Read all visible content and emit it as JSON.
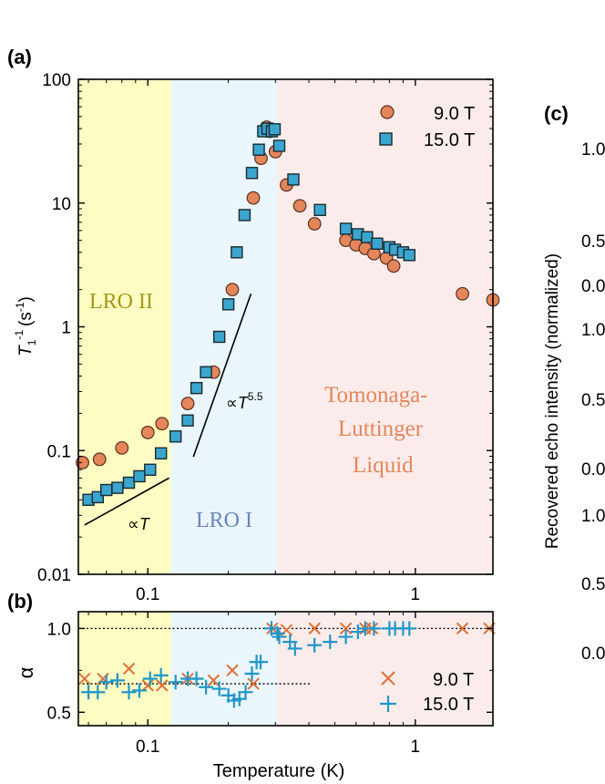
{
  "panel_labels": {
    "a": "(a)",
    "b": "(b)",
    "c": "(c)"
  },
  "right_panel": {
    "ylabel": "Recovered echo intensity (normalized)",
    "tick_labels": [
      "1.0",
      "0.5",
      "0.0",
      "1.0",
      "0.5",
      "0.0",
      "1.0",
      "0.5",
      "0.0"
    ]
  },
  "region_labels": {
    "lro2": "LRO II",
    "lro1": "LRO I",
    "tll_line1": "Tomonaga-",
    "tll_line2": "Luttinger",
    "tll_line3": "Liquid"
  },
  "colors": {
    "lro2_bg": "#fdfcc2",
    "lro1_bg": "#eaf6fc",
    "tll_bg": "#fbeceb",
    "lro2_text": "#a49a1a",
    "lro1_text": "#6c84c2",
    "tll_text": "#e4855a",
    "circle_fill": "#e4855a",
    "square_fill": "#3aa6cf",
    "x_color": "#e0703a",
    "plus_color": "#2196c8"
  },
  "chart_data": [
    {
      "type": "scatter",
      "panel": "a",
      "ylabel_main": "T",
      "ylabel_sub": "1",
      "ylabel_sup": "-1",
      "ylabel_unit": "(s",
      "ylabel_unit_sup": "-1",
      "ylabel_close": ")",
      "xscale": "log",
      "yscale": "log",
      "xlim": [
        0.055,
        1.95
      ],
      "ylim": [
        0.01,
        100
      ],
      "yticks": [
        0.01,
        0.1,
        1,
        10,
        100
      ],
      "ytick_labels": [
        "0.01",
        "0.1",
        "1",
        "10",
        "100"
      ],
      "xticks": [
        0.1,
        1
      ],
      "regions": [
        {
          "name": "LRO II",
          "x0": 0.055,
          "x1": 0.122
        },
        {
          "name": "LRO I",
          "x0": 0.122,
          "x1": 0.305
        },
        {
          "name": "Tomonaga-Luttinger Liquid",
          "x0": 0.305,
          "x1": 1.95
        }
      ],
      "series": [
        {
          "name": "9.0 T",
          "label": "9.0 T",
          "marker": "circle",
          "x": [
            0.057,
            0.066,
            0.08,
            0.1,
            0.113,
            0.141,
            0.176,
            0.207,
            0.248,
            0.265,
            0.278,
            0.286,
            0.3,
            0.33,
            0.37,
            0.42,
            0.55,
            0.6,
            0.65,
            0.7,
            0.78,
            0.83,
            1.5,
            1.95
          ],
          "y": [
            0.08,
            0.085,
            0.105,
            0.14,
            0.165,
            0.24,
            0.43,
            2.0,
            11.0,
            23.0,
            41.0,
            38.0,
            26.0,
            14.0,
            9.5,
            6.8,
            5.0,
            4.6,
            4.3,
            3.9,
            3.6,
            3.1,
            1.85,
            1.65
          ]
        },
        {
          "name": "15.0 T",
          "label": "15.0 T",
          "marker": "square",
          "x": [
            0.06,
            0.065,
            0.07,
            0.077,
            0.085,
            0.093,
            0.102,
            0.112,
            0.127,
            0.141,
            0.152,
            0.165,
            0.185,
            0.2,
            0.215,
            0.23,
            0.245,
            0.26,
            0.27,
            0.28,
            0.291,
            0.298,
            0.31,
            0.35,
            0.44,
            0.55,
            0.61,
            0.66,
            0.72,
            0.8,
            0.84,
            0.9,
            0.95
          ],
          "y": [
            0.04,
            0.042,
            0.048,
            0.05,
            0.055,
            0.062,
            0.07,
            0.095,
            0.13,
            0.175,
            0.32,
            0.43,
            0.83,
            1.52,
            4.0,
            8.0,
            17.5,
            27.0,
            38.0,
            40.0,
            38.0,
            39.5,
            29.0,
            15.5,
            8.8,
            6.2,
            5.6,
            5.3,
            4.7,
            4.4,
            4.2,
            4.0,
            3.8
          ]
        }
      ],
      "guide_lines": [
        {
          "label": "∝T",
          "x": [
            0.058,
            0.12
          ],
          "y": [
            0.025,
            0.06
          ]
        },
        {
          "label": "∝T^5.5",
          "x": [
            0.148,
            0.243
          ],
          "y": [
            0.089,
            1.85
          ]
        }
      ],
      "annotations": {
        "lin_prefix": "∝",
        "lin_var": "T",
        "pow_prefix": "∝",
        "pow_var": "T",
        "pow_exp": "5.5"
      }
    },
    {
      "type": "scatter",
      "panel": "b",
      "ylabel": "α",
      "xlabel": "Temperature (K)",
      "xscale": "log",
      "xlim": [
        0.055,
        1.95
      ],
      "ylim": [
        0.42,
        1.1
      ],
      "yticks": [
        0.5,
        1.0
      ],
      "ytick_labels": [
        "0.5",
        "1.0"
      ],
      "xticks": [
        0.1,
        1
      ],
      "xtick_labels": [
        "0.1",
        "1"
      ],
      "reference_lines": [
        {
          "y": 1.0,
          "x": [
            0.055,
            1.95
          ],
          "style": "dotted"
        },
        {
          "y": 0.67,
          "x": [
            0.055,
            0.41
          ],
          "style": "dotted"
        }
      ],
      "series": [
        {
          "name": "9.0 T",
          "label": "9.0 T",
          "marker": "x",
          "x": [
            0.058,
            0.068,
            0.085,
            0.1,
            0.113,
            0.141,
            0.176,
            0.207,
            0.248,
            0.292,
            0.33,
            0.42,
            0.55,
            0.65,
            0.69,
            1.5,
            1.9
          ],
          "y": [
            0.7,
            0.7,
            0.76,
            0.66,
            0.66,
            0.7,
            0.69,
            0.75,
            0.67,
            1.0,
            0.99,
            1.0,
            1.0,
            1.0,
            1.0,
            1.0,
            1.0
          ]
        },
        {
          "name": "15.0 T",
          "label": "15.0 T",
          "marker": "plus",
          "x": [
            0.06,
            0.065,
            0.07,
            0.077,
            0.085,
            0.093,
            0.102,
            0.112,
            0.127,
            0.141,
            0.152,
            0.165,
            0.185,
            0.2,
            0.21,
            0.22,
            0.232,
            0.245,
            0.255,
            0.264,
            0.29,
            0.305,
            0.31,
            0.34,
            0.355,
            0.42,
            0.48,
            0.55,
            0.61,
            0.65,
            0.7,
            0.8,
            0.84,
            0.9,
            0.95
          ],
          "y": [
            0.62,
            0.62,
            0.68,
            0.69,
            0.62,
            0.63,
            0.7,
            0.72,
            0.68,
            0.7,
            0.7,
            0.65,
            0.64,
            0.6,
            0.57,
            0.58,
            0.62,
            0.73,
            0.8,
            0.8,
            1.0,
            0.97,
            0.95,
            0.92,
            0.88,
            0.9,
            0.92,
            0.95,
            0.98,
            1.0,
            1.0,
            1.0,
            1.0,
            1.0,
            1.0
          ]
        }
      ]
    }
  ]
}
